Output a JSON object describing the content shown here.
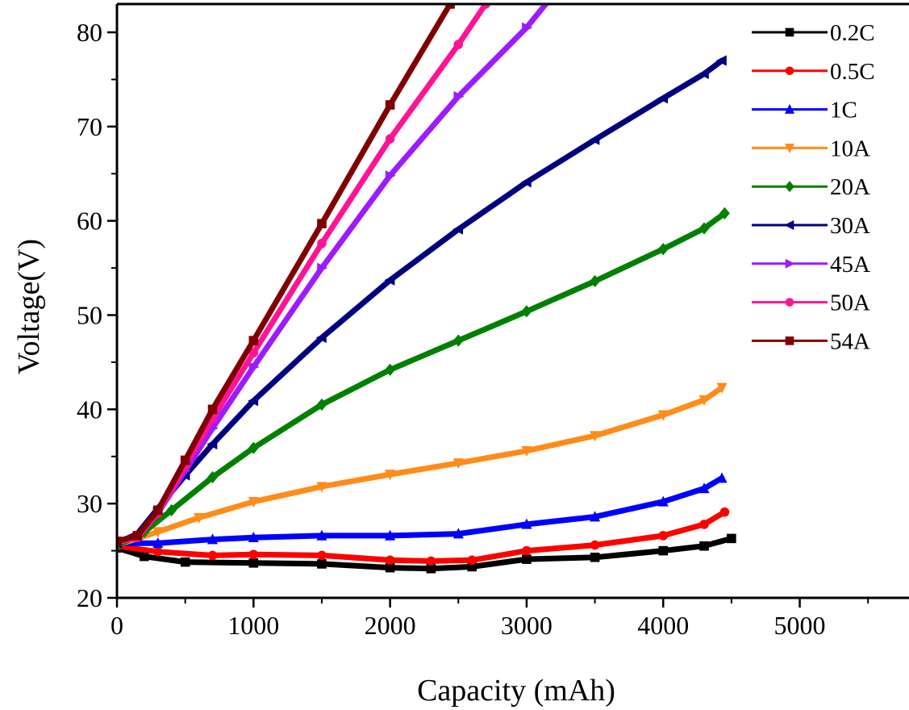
{
  "chart_data": {
    "type": "line",
    "title": "",
    "xlabel": "Capacity (mAh)",
    "ylabel": "Voltage(V)",
    "xlim": [
      0,
      5800
    ],
    "ylim": [
      20,
      83
    ],
    "xticks": [
      0,
      1000,
      2000,
      3000,
      4000,
      5000
    ],
    "xtick_labels": [
      "0",
      "1000",
      "2000",
      "3000",
      "4000",
      "5000"
    ],
    "yticks": [
      20,
      30,
      40,
      50,
      60,
      70,
      80
    ],
    "ytick_labels": [
      "20",
      "30",
      "40",
      "50",
      "60",
      "70",
      "80"
    ],
    "grid": false,
    "legend_position": "top-right",
    "series": [
      {
        "name": "0.2C",
        "color": "#000000",
        "marker": "square",
        "x": [
          0,
          200,
          500,
          1000,
          1500,
          2000,
          2300,
          2600,
          3000,
          3500,
          4000,
          4300,
          4500
        ],
        "y": [
          25.3,
          24.4,
          23.8,
          23.7,
          23.6,
          23.2,
          23.1,
          23.3,
          24.1,
          24.3,
          25.0,
          25.5,
          26.3
        ]
      },
      {
        "name": "0.5C",
        "color": "#ff0000",
        "marker": "circle",
        "x": [
          0,
          300,
          700,
          1000,
          1500,
          2000,
          2300,
          2600,
          3000,
          3500,
          4000,
          4300,
          4450
        ],
        "y": [
          25.5,
          24.9,
          24.5,
          24.6,
          24.5,
          24.0,
          23.9,
          24.0,
          25.0,
          25.6,
          26.6,
          27.8,
          29.1
        ]
      },
      {
        "name": "1C",
        "color": "#0000ff",
        "marker": "triangle-up",
        "x": [
          0,
          300,
          700,
          1000,
          1500,
          2000,
          2500,
          3000,
          3500,
          4000,
          4300,
          4430
        ],
        "y": [
          25.8,
          25.8,
          26.2,
          26.4,
          26.6,
          26.6,
          26.8,
          27.8,
          28.6,
          30.2,
          31.6,
          32.7
        ]
      },
      {
        "name": "10A",
        "color": "#ff8c1a",
        "marker": "triangle-down",
        "x": [
          0,
          300,
          600,
          1000,
          1500,
          2000,
          2500,
          3000,
          3500,
          4000,
          4300,
          4430
        ],
        "y": [
          25.6,
          27.0,
          28.5,
          30.2,
          31.8,
          33.1,
          34.3,
          35.6,
          37.2,
          39.4,
          41.0,
          42.3
        ]
      },
      {
        "name": "20A",
        "color": "#008000",
        "marker": "diamond",
        "x": [
          0,
          200,
          400,
          700,
          1000,
          1500,
          2000,
          2500,
          3000,
          3500,
          4000,
          4300,
          4450
        ],
        "y": [
          25.5,
          27.0,
          29.3,
          32.8,
          35.9,
          40.5,
          44.2,
          47.3,
          50.4,
          53.6,
          57.0,
          59.2,
          60.8
        ]
      },
      {
        "name": "30A",
        "color": "#000080",
        "marker": "triangle-left",
        "x": [
          0,
          150,
          300,
          500,
          700,
          1000,
          1500,
          2000,
          2500,
          3000,
          3500,
          4000,
          4300,
          4430
        ],
        "y": [
          25.8,
          26.8,
          29.5,
          33.0,
          36.3,
          40.9,
          47.6,
          53.7,
          59.1,
          64.1,
          68.6,
          73.0,
          75.6,
          77.0
        ]
      },
      {
        "name": "45A",
        "color": "#9b1cff",
        "marker": "triangle-right",
        "x": [
          0,
          150,
          300,
          500,
          700,
          1000,
          1500,
          2000,
          2500,
          3000,
          3140
        ],
        "y": [
          25.9,
          26.5,
          29.0,
          33.5,
          38.0,
          44.5,
          55.0,
          64.8,
          73.2,
          80.5,
          83.0
        ]
      },
      {
        "name": "50A",
        "color": "#ff1493",
        "marker": "circle",
        "x": [
          0,
          150,
          300,
          500,
          700,
          1000,
          1500,
          2000,
          2500,
          2700
        ],
        "y": [
          25.9,
          26.4,
          29.0,
          34.0,
          39.0,
          46.0,
          57.6,
          68.7,
          78.7,
          83.0
        ]
      },
      {
        "name": "54A",
        "color": "#800000",
        "marker": "square",
        "x": [
          0,
          150,
          300,
          500,
          700,
          1000,
          1500,
          2000,
          2440
        ],
        "y": [
          26.0,
          26.6,
          29.3,
          34.6,
          40.0,
          47.3,
          59.7,
          72.3,
          83.0
        ]
      }
    ]
  }
}
